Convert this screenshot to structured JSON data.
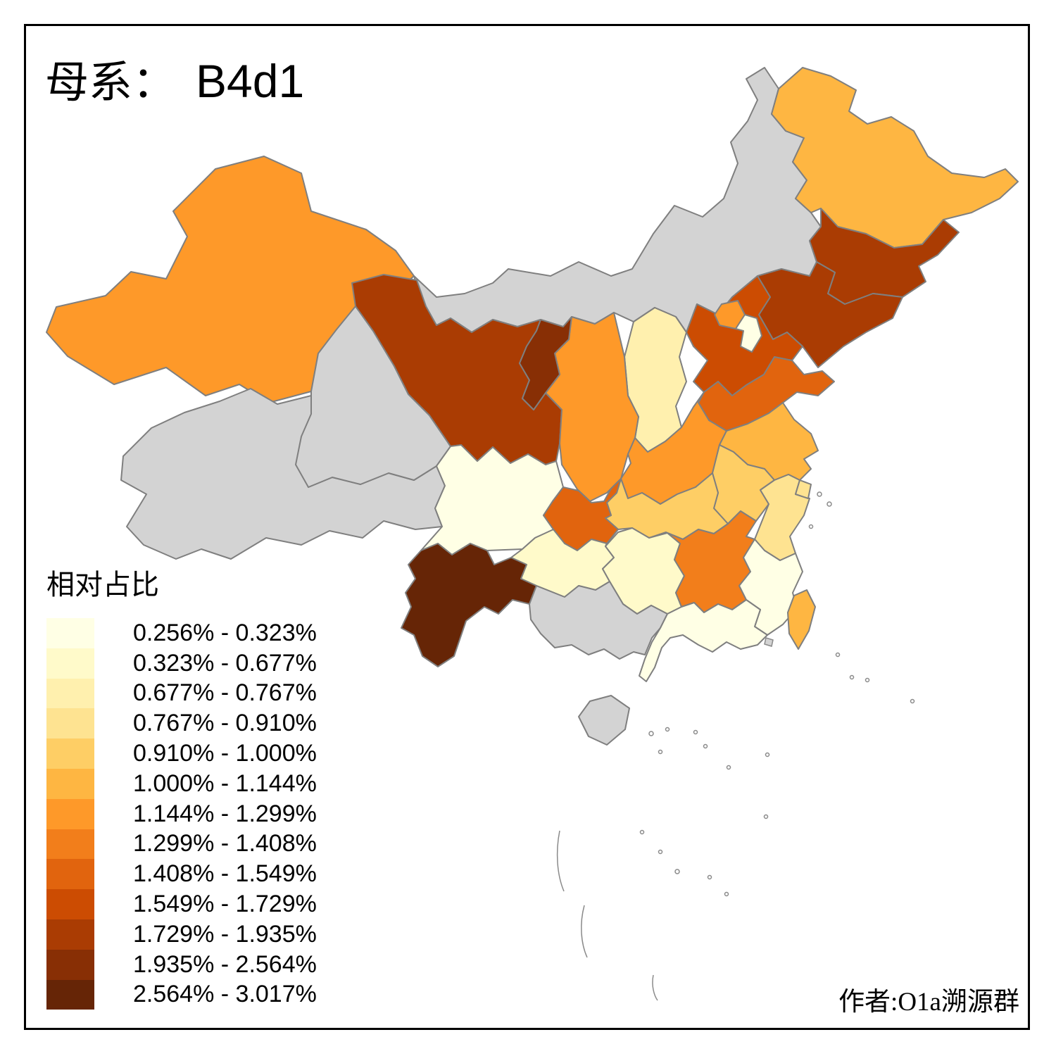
{
  "title": {
    "prefix": "母系：",
    "haplogroup": "B4d1"
  },
  "legend": {
    "title": "相对占比",
    "bins": [
      {
        "label": "0.256% - 0.323%",
        "color": "#FFFFE5"
      },
      {
        "label": "0.323% - 0.677%",
        "color": "#FFFACA"
      },
      {
        "label": "0.677% - 0.767%",
        "color": "#FFF0AE"
      },
      {
        "label": "0.767% - 0.910%",
        "color": "#FEE391"
      },
      {
        "label": "0.910% - 1.000%",
        "color": "#FECE65"
      },
      {
        "label": "1.000% - 1.144%",
        "color": "#FEB642"
      },
      {
        "label": "1.144% - 1.299%",
        "color": "#FE9929"
      },
      {
        "label": "1.299% - 1.408%",
        "color": "#F27E1B"
      },
      {
        "label": "1.408% - 1.549%",
        "color": "#E1640E"
      },
      {
        "label": "1.549% - 1.729%",
        "color": "#CC4C02"
      },
      {
        "label": "1.729% - 1.935%",
        "color": "#AA3C03"
      },
      {
        "label": "1.935% - 2.564%",
        "color": "#882F05"
      },
      {
        "label": "2.564% - 3.017%",
        "color": "#662506"
      }
    ]
  },
  "credit": "作者:O1a溯源群",
  "map": {
    "no_data_color": "#D3D3D3",
    "border_color": "#7F7F7F",
    "sea_color": "#FFFFFF",
    "regions": {
      "xinjiang": {
        "name": "新疆",
        "bin": 7
      },
      "xizang": {
        "name": "西藏",
        "bin": null
      },
      "qinghai": {
        "name": "青海",
        "bin": null
      },
      "gansu": {
        "name": "甘肃",
        "bin": 11
      },
      "neimenggu": {
        "name": "内蒙古",
        "bin": null
      },
      "ningxia": {
        "name": "宁夏",
        "bin": 12
      },
      "shaanxi": {
        "name": "陕西",
        "bin": 7
      },
      "shanxi": {
        "name": "山西",
        "bin": 3
      },
      "hebei": {
        "name": "河北",
        "bin": 10
      },
      "beijing": {
        "name": "北京",
        "bin": 7
      },
      "tianjin": {
        "name": "天津",
        "bin": 1
      },
      "shandong": {
        "name": "山东",
        "bin": 9
      },
      "henan": {
        "name": "河南",
        "bin": 7
      },
      "jiangsu": {
        "name": "江苏",
        "bin": 6
      },
      "anhui": {
        "name": "安徽",
        "bin": 5
      },
      "shanghai": {
        "name": "上海",
        "bin": 4
      },
      "zhejiang": {
        "name": "浙江",
        "bin": 4
      },
      "hubei": {
        "name": "湖北",
        "bin": 5
      },
      "chongqing": {
        "name": "重庆",
        "bin": 9
      },
      "sichuan": {
        "name": "四川",
        "bin": 1
      },
      "guizhou": {
        "name": "贵州",
        "bin": 2
      },
      "yunnan": {
        "name": "云南",
        "bin": 13
      },
      "hunan": {
        "name": "湖南",
        "bin": 2
      },
      "jiangxi": {
        "name": "江西",
        "bin": 8
      },
      "fujian": {
        "name": "福建",
        "bin": 1
      },
      "guangdong": {
        "name": "广东",
        "bin": 1
      },
      "guangxi": {
        "name": "广西",
        "bin": null
      },
      "hainan": {
        "name": "海南",
        "bin": null
      },
      "heilongjiang": {
        "name": "黑龙江",
        "bin": 6
      },
      "jilin": {
        "name": "吉林",
        "bin": 11
      },
      "liaoning": {
        "name": "辽宁",
        "bin": 11
      },
      "taiwan": {
        "name": "台湾",
        "bin": 6
      }
    }
  }
}
